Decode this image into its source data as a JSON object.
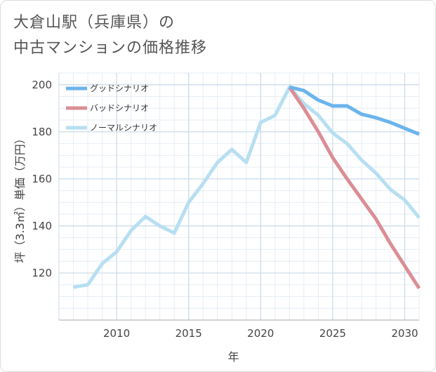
{
  "title": {
    "line1": "大倉山駅（兵庫県）の",
    "line2": "中古マンションの価格推移"
  },
  "chart_data": {
    "type": "line",
    "xlabel": "年",
    "ylabel": "坪（3.3㎡）単価（万円）",
    "xlim": [
      2006,
      2031
    ],
    "ylim": [
      100,
      205
    ],
    "xticks": [
      2010,
      2015,
      2020,
      2025,
      2030
    ],
    "yticks": [
      120,
      140,
      160,
      180,
      200
    ],
    "grid": true,
    "legend_position": "top-left",
    "series": [
      {
        "name": "グッドシナリオ",
        "color": "#6cb4ec",
        "x": [
          2022,
          2023,
          2024,
          2025,
          2026,
          2027,
          2028,
          2029,
          2030,
          2031
        ],
        "values": [
          199,
          197.5,
          193.5,
          191,
          191,
          187.5,
          186,
          184,
          181.5,
          179
        ]
      },
      {
        "name": "バッドシナリオ",
        "color": "#db8e95",
        "x": [
          2022,
          2023,
          2024,
          2025,
          2026,
          2027,
          2028,
          2029,
          2030,
          2031
        ],
        "values": [
          199,
          190,
          180,
          169,
          160,
          151.5,
          143,
          132.5,
          123,
          113.5
        ]
      },
      {
        "name": "ノーマルシナリオ",
        "color": "#b7dff1",
        "x": [
          2007,
          2008,
          2009,
          2010,
          2011,
          2012,
          2013,
          2014,
          2015,
          2016,
          2017,
          2018,
          2019,
          2020,
          2021,
          2022,
          2023,
          2024,
          2025,
          2026,
          2027,
          2028,
          2029,
          2030,
          2031
        ],
        "values": [
          114,
          115,
          124,
          129,
          138,
          144,
          140,
          137,
          150,
          158,
          167,
          172.5,
          167,
          184,
          187,
          199,
          192,
          187,
          179.5,
          175,
          168,
          162.5,
          155.5,
          151,
          143.5
        ]
      }
    ]
  }
}
